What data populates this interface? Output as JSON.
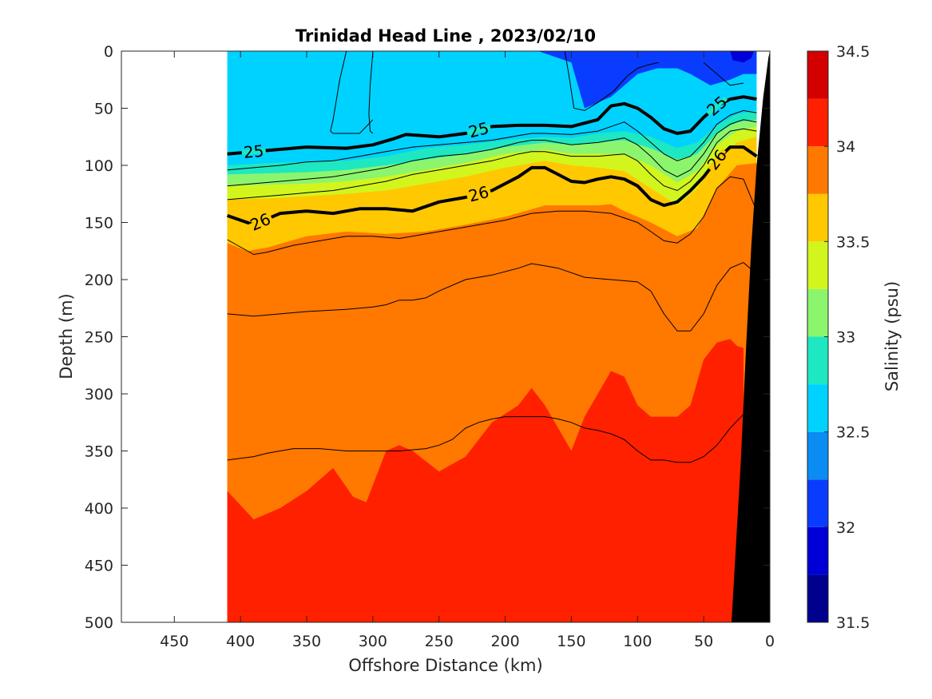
{
  "chart_data": {
    "type": "heatmap",
    "subtype": "filled-contour-section",
    "title": "Trinidad Head Line , 2023/02/10",
    "xlabel": "Offshore Distance (km)",
    "ylabel": "Depth (m)",
    "xlim": [
      490,
      0
    ],
    "ylim": [
      0,
      500
    ],
    "x_reversed": true,
    "y_reversed": true,
    "grid": false,
    "xticks": [
      450,
      400,
      350,
      300,
      250,
      200,
      150,
      100,
      50,
      0
    ],
    "yticks": [
      0,
      50,
      100,
      150,
      200,
      250,
      300,
      350,
      400,
      450,
      500
    ],
    "data_extent_x": [
      410,
      10
    ],
    "colorbar": {
      "label": "Salinity (psu)",
      "range": [
        31.5,
        34.5
      ],
      "ticks": [
        31.5,
        32,
        32.5,
        33,
        33.5,
        34,
        34.5
      ],
      "levels": [
        31.5,
        31.75,
        32,
        32.25,
        32.5,
        32.75,
        33,
        33.25,
        33.5,
        33.75,
        34,
        34.25,
        34.5
      ],
      "colors": [
        "#00008f",
        "#0000d6",
        "#0a3cff",
        "#0a8cf2",
        "#00d2ff",
        "#1ee8c2",
        "#8cf56e",
        "#d2f51e",
        "#ffc800",
        "#ff7800",
        "#ff2000",
        "#d40000"
      ]
    },
    "salinity_boundaries": [
      {
        "level": 32.25,
        "x": [
          175,
          150,
          140,
          120,
          100,
          85,
          70,
          60,
          45,
          30,
          20,
          10
        ],
        "depth": [
          0,
          10,
          50,
          40,
          20,
          15,
          15,
          20,
          30,
          25,
          20,
          20
        ]
      },
      {
        "level": 32.5,
        "x": [
          410,
          380,
          350,
          320,
          290,
          260,
          230,
          200,
          170,
          150,
          130,
          110,
          90,
          70,
          55,
          40,
          25,
          10
        ],
        "depth": [
          75,
          76,
          75,
          74,
          70,
          66,
          64,
          60,
          60,
          58,
          55,
          45,
          50,
          62,
          55,
          45,
          40,
          38
        ]
      },
      {
        "level": 32.75,
        "x": [
          410,
          380,
          350,
          320,
          290,
          260,
          230,
          200,
          170,
          150,
          130,
          110,
          90,
          70,
          55,
          40,
          25,
          10
        ],
        "depth": [
          100,
          98,
          97,
          96,
          92,
          85,
          82,
          78,
          75,
          76,
          72,
          70,
          75,
          85,
          80,
          65,
          55,
          52
        ]
      },
      {
        "level": 33.0,
        "x": [
          410,
          380,
          350,
          320,
          290,
          260,
          230,
          200,
          170,
          150,
          130,
          110,
          90,
          70,
          55,
          40,
          25,
          10
        ],
        "depth": [
          108,
          107,
          106,
          104,
          100,
          95,
          90,
          84,
          80,
          82,
          80,
          78,
          85,
          95,
          90,
          72,
          62,
          60
        ]
      },
      {
        "level": 33.25,
        "x": [
          410,
          380,
          350,
          320,
          290,
          260,
          230,
          200,
          170,
          150,
          130,
          110,
          90,
          70,
          55,
          40,
          25,
          10
        ],
        "depth": [
          118,
          117,
          116,
          114,
          110,
          104,
          98,
          90,
          86,
          90,
          90,
          90,
          100,
          115,
          105,
          82,
          70,
          66
        ]
      },
      {
        "level": 33.5,
        "x": [
          410,
          380,
          350,
          320,
          290,
          260,
          230,
          200,
          170,
          150,
          130,
          110,
          90,
          70,
          55,
          40,
          25,
          10
        ],
        "depth": [
          130,
          129,
          127,
          125,
          122,
          116,
          110,
          102,
          96,
          100,
          102,
          105,
          120,
          135,
          120,
          95,
          80,
          75
        ]
      },
      {
        "level": 33.75,
        "x": [
          410,
          395,
          380,
          350,
          320,
          290,
          260,
          230,
          200,
          170,
          150,
          130,
          120,
          110,
          90,
          70,
          55,
          40,
          25,
          10
        ],
        "depth": [
          168,
          175,
          172,
          162,
          158,
          160,
          158,
          152,
          145,
          135,
          135,
          135,
          134,
          140,
          150,
          162,
          155,
          120,
          100,
          98
        ]
      },
      {
        "level": 34.0,
        "x": [
          410,
          390,
          370,
          350,
          330,
          315,
          305,
          290,
          280,
          270,
          250,
          230,
          210,
          190,
          180,
          170,
          160,
          150,
          140,
          130,
          120,
          110,
          100,
          90,
          80,
          70,
          60,
          50,
          40,
          30,
          25,
          20
        ],
        "depth": [
          385,
          410,
          400,
          385,
          365,
          390,
          395,
          350,
          345,
          350,
          368,
          355,
          325,
          310,
          295,
          310,
          330,
          350,
          320,
          300,
          280,
          285,
          310,
          320,
          320,
          320,
          310,
          270,
          255,
          252,
          258,
          260
        ]
      }
    ],
    "isopycnals": [
      {
        "sigma_theta": 25,
        "label": "25",
        "x": [
          410,
          380,
          350,
          320,
          300,
          285,
          275,
          250,
          230,
          210,
          190,
          170,
          150,
          130,
          120,
          110,
          100,
          90,
          80,
          70,
          60,
          50,
          40,
          30,
          20,
          10
        ],
        "depth": [
          90,
          87,
          84,
          85,
          82,
          77,
          73,
          75,
          72,
          66,
          65,
          65,
          66,
          60,
          48,
          46,
          50,
          58,
          68,
          72,
          70,
          58,
          48,
          42,
          40,
          42
        ]
      },
      {
        "sigma_theta": 26,
        "label": "26",
        "x": [
          410,
          390,
          370,
          350,
          330,
          310,
          290,
          270,
          250,
          230,
          210,
          190,
          180,
          170,
          160,
          150,
          140,
          130,
          120,
          110,
          100,
          90,
          80,
          70,
          60,
          50,
          40,
          30,
          20,
          10
        ],
        "depth": [
          144,
          152,
          142,
          140,
          142,
          138,
          138,
          140,
          132,
          128,
          122,
          110,
          102,
          102,
          108,
          114,
          115,
          112,
          110,
          112,
          118,
          130,
          135,
          132,
          122,
          110,
          95,
          84,
          84,
          92
        ]
      }
    ],
    "thin_contours": [
      {
        "x": [
          410,
          390,
          370,
          350,
          330,
          310,
          290,
          270,
          250,
          230,
          210,
          190,
          180,
          170,
          150,
          130,
          110,
          100,
          90,
          80,
          70,
          60,
          50,
          40,
          30,
          20,
          10
        ],
        "depth": [
          104,
          102,
          100,
          97,
          96,
          92,
          88,
          84,
          82,
          80,
          78,
          74,
          72,
          72,
          73,
          70,
          62,
          70,
          80,
          90,
          96,
          92,
          80,
          64,
          56,
          52,
          54
        ]
      },
      {
        "x": [
          410,
          390,
          370,
          350,
          330,
          310,
          290,
          270,
          250,
          230,
          210,
          190,
          180,
          170,
          150,
          130,
          110,
          100,
          90,
          80,
          70,
          60,
          50,
          40,
          30,
          20,
          10
        ],
        "depth": [
          118,
          116,
          114,
          112,
          110,
          106,
          102,
          96,
          92,
          90,
          86,
          80,
          78,
          78,
          82,
          80,
          76,
          82,
          92,
          104,
          110,
          104,
          90,
          72,
          64,
          60,
          62
        ]
      },
      {
        "x": [
          410,
          390,
          370,
          350,
          330,
          310,
          290,
          270,
          250,
          230,
          210,
          190,
          180,
          170,
          150,
          130,
          110,
          100,
          90,
          80,
          70,
          60,
          50,
          40,
          30,
          20,
          10
        ],
        "depth": [
          130,
          128,
          126,
          124,
          122,
          118,
          114,
          108,
          104,
          100,
          96,
          90,
          88,
          88,
          92,
          92,
          90,
          96,
          108,
          118,
          122,
          114,
          100,
          80,
          70,
          68,
          70
        ]
      },
      {
        "x": [
          410,
          390,
          380,
          360,
          340,
          320,
          300,
          280,
          260,
          240,
          220,
          200,
          180,
          160,
          140,
          120,
          100,
          90,
          80,
          70,
          60,
          50,
          40,
          30,
          20,
          10
        ],
        "depth": [
          165,
          178,
          176,
          170,
          166,
          162,
          162,
          164,
          160,
          156,
          152,
          148,
          142,
          140,
          140,
          142,
          150,
          158,
          166,
          168,
          160,
          145,
          120,
          110,
          112,
          140
        ]
      },
      {
        "x": [
          410,
          390,
          370,
          350,
          320,
          300,
          290,
          280,
          270,
          260,
          250,
          230,
          210,
          190,
          180,
          170,
          160,
          140,
          120,
          100,
          90,
          80,
          70,
          60,
          50,
          40,
          30,
          20,
          10
        ],
        "depth": [
          230,
          232,
          230,
          228,
          226,
          224,
          222,
          218,
          218,
          216,
          210,
          200,
          196,
          190,
          186,
          188,
          190,
          198,
          200,
          202,
          210,
          230,
          245,
          245,
          230,
          205,
          190,
          185,
          195
        ]
      },
      {
        "x": [
          410,
          390,
          380,
          360,
          340,
          320,
          300,
          280,
          260,
          250,
          240,
          230,
          220,
          210,
          200,
          190,
          180,
          170,
          160,
          150,
          140,
          130,
          120,
          110,
          100,
          90,
          80,
          70,
          60,
          50,
          40,
          30,
          20
        ],
        "depth": [
          358,
          355,
          352,
          348,
          348,
          350,
          350,
          350,
          348,
          345,
          340,
          330,
          325,
          322,
          320,
          320,
          320,
          320,
          322,
          325,
          330,
          332,
          335,
          340,
          350,
          358,
          358,
          360,
          360,
          355,
          345,
          330,
          318
        ]
      },
      {
        "x": [
          320,
          325,
          330,
          332,
          330,
          325,
          310,
          300
        ],
        "depth": [
          0,
          25,
          60,
          70,
          72,
          72,
          72,
          60
        ]
      },
      {
        "x": [
          300,
          302,
          303,
          302,
          300
        ],
        "depth": [
          0,
          30,
          55,
          70,
          72
        ]
      },
      {
        "x": [
          155,
          152,
          148,
          140,
          130,
          118,
          108,
          100,
          92,
          84
        ],
        "depth": [
          0,
          20,
          50,
          52,
          45,
          35,
          22,
          15,
          12,
          10
        ]
      },
      {
        "x": [
          50,
          45,
          40,
          30,
          20
        ],
        "depth": [
          10,
          15,
          20,
          30,
          28
        ]
      }
    ],
    "bottom_topography": {
      "x": [
        0,
        0,
        25,
        22,
        18,
        14,
        10,
        6,
        2
      ],
      "depth": [
        0,
        500,
        500,
        450,
        350,
        250,
        150,
        60,
        10
      ]
    }
  }
}
